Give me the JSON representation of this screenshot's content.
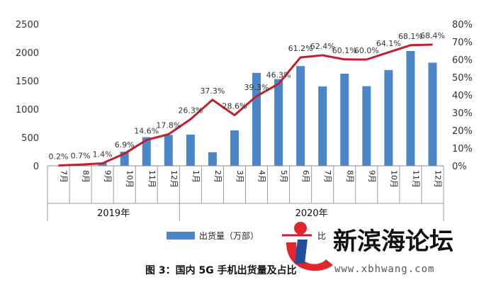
{
  "chart_data": {
    "type": "bar",
    "categories": [
      "7月",
      "8月",
      "9月",
      "10月",
      "11月",
      "12月",
      "1月",
      "2月",
      "3月",
      "4月",
      "5月",
      "6月",
      "7月",
      "8月",
      "9月",
      "10月",
      "11月",
      "12月"
    ],
    "year_groups": [
      {
        "label": "2019年",
        "count": 6
      },
      {
        "label": "2020年",
        "count": 12
      }
    ],
    "series": [
      {
        "name": "出货量（万部）",
        "type": "bar",
        "axis": "left",
        "color": "#4a86c8",
        "values": [
          0,
          6,
          55,
          250,
          505,
          545,
          550,
          240,
          625,
          1640,
          1530,
          1760,
          1400,
          1625,
          1405,
          1690,
          2025,
          1820
        ]
      },
      {
        "name": "比",
        "type": "line",
        "axis": "right",
        "color": "#c0202e",
        "values": [
          0.2,
          0.7,
          1.4,
          6.9,
          14.6,
          17.8,
          26.3,
          37.3,
          28.6,
          39.3,
          46.3,
          61.2,
          62.4,
          60.1,
          60.0,
          64.1,
          68.1,
          68.4
        ],
        "labels": [
          "0.2%",
          "0.7%",
          "1.4%",
          "6.9%",
          "14.6%",
          "17.8%",
          "26.3%",
          "37.3%",
          "28.6%",
          "39.3%",
          "46.3%",
          "61.2%",
          "62.4%",
          "60.1%",
          "60.0%",
          "64.1%",
          "68.1%",
          "68.4%"
        ]
      }
    ],
    "left_axis": {
      "ticks": [
        "0",
        "500",
        "1000",
        "1500",
        "2000",
        "2500"
      ],
      "ylim": [
        0,
        2500
      ]
    },
    "right_axis": {
      "ticks": [
        "0%",
        "10%",
        "20%",
        "30%",
        "40%",
        "50%",
        "60%",
        "70%",
        "80%"
      ],
      "ylim": [
        0,
        80
      ]
    },
    "legend_position": "bottom",
    "caption": "图 3：国内 5G 手机出货量及占比",
    "grid": false
  },
  "watermark": {
    "brand": "新滨海论坛",
    "url": "www.xbhwang.com",
    "colors": {
      "red": "#e3262c",
      "blue": "#1d4f9c"
    }
  }
}
